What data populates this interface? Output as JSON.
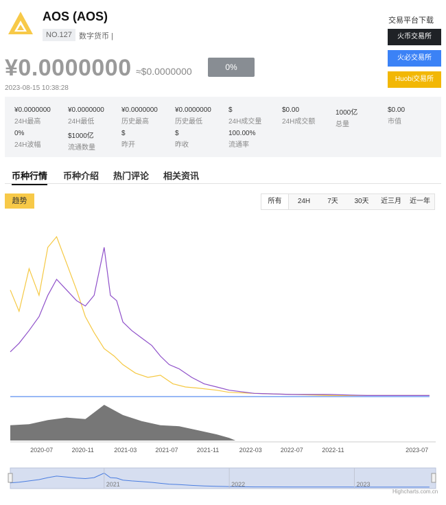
{
  "coin": {
    "name": "AOS (AOS)",
    "rank": "NO.127",
    "type": "数字货币 |",
    "price_cny": "¥0.0000000",
    "price_usd": "≈$0.0000000",
    "change": "0%",
    "timestamp": "2023-08-15 10:38:28",
    "accent_color": "#f7c948",
    "logo_icon": "aos-logo-icon"
  },
  "exchanges": {
    "title": "交易平台下载",
    "buttons": [
      "火币交易所",
      "火必交易所",
      "Huobi交易所"
    ]
  },
  "stats": [
    {
      "value": "¥0.0000000",
      "label": "24H最高"
    },
    {
      "value": "¥0.0000000",
      "label": "24H最低"
    },
    {
      "value": "¥0.0000000",
      "label": "历史最高"
    },
    {
      "value": "¥0.0000000",
      "label": "历史最低"
    },
    {
      "value": "$",
      "label": "24H成交量"
    },
    {
      "value": "$0.00",
      "label": "24H成交额"
    },
    {
      "value": "1000亿",
      "label": "总量"
    },
    {
      "value": "$0.00",
      "label": "市值"
    },
    {
      "value": "0%",
      "label": "24H波幅"
    },
    {
      "value": "$1000亿",
      "label": "流通数量"
    },
    {
      "value": "$",
      "label": "昨开"
    },
    {
      "value": "$",
      "label": "昨收"
    },
    {
      "value": "100.00%",
      "label": "流通率"
    }
  ],
  "tabs": [
    "币种行情",
    "币种介绍",
    "热门评论",
    "相关资讯"
  ],
  "trend_label": "趋势",
  "ranges": [
    "所有",
    "24H",
    "7天",
    "30天",
    "近三月",
    "近一年"
  ],
  "active_range": "所有",
  "chart_credit": "Highcharts.com.cn",
  "chart_data": {
    "type": "line",
    "x_ticks": [
      "2020-07",
      "2020-11",
      "2021-03",
      "2021-07",
      "2021-11",
      "2022-03",
      "2022-07",
      "2022-11",
      "2023-07"
    ],
    "navigator_ticks": [
      "2021",
      "2022",
      "2023"
    ],
    "series": [
      {
        "color": "#f5c842",
        "x": [
          2020.25,
          2020.32,
          2020.4,
          2020.48,
          2020.55,
          2020.62,
          2020.7,
          2020.78,
          2020.85,
          2020.92,
          2021.0,
          2021.08,
          2021.15,
          2021.25,
          2021.35,
          2021.45,
          2021.55,
          2021.65,
          2021.75,
          2021.9,
          2022.0,
          2022.2,
          2022.5,
          2022.8,
          2023.1,
          2023.4,
          2023.6
        ],
        "values": [
          100,
          80,
          120,
          95,
          140,
          150,
          125,
          100,
          75,
          60,
          45,
          38,
          30,
          22,
          18,
          20,
          12,
          9,
          8,
          6,
          4,
          3,
          2,
          1,
          1,
          1,
          1
        ]
      },
      {
        "color": "#8e4fc9",
        "x": [
          2020.25,
          2020.32,
          2020.4,
          2020.48,
          2020.55,
          2020.62,
          2020.7,
          2020.78,
          2020.85,
          2020.92,
          2021.0,
          2021.05,
          2021.1,
          2021.15,
          2021.22,
          2021.3,
          2021.38,
          2021.45,
          2021.52,
          2021.6,
          2021.7,
          2021.8,
          2021.9,
          2022.0,
          2022.2,
          2022.5,
          2022.8,
          2023.1,
          2023.4,
          2023.6
        ],
        "values": [
          42,
          50,
          62,
          75,
          95,
          110,
          100,
          90,
          85,
          95,
          140,
          95,
          90,
          70,
          62,
          55,
          48,
          38,
          30,
          26,
          18,
          12,
          9,
          6,
          3,
          2,
          2,
          1,
          1,
          1
        ]
      },
      {
        "color": "#5b8def",
        "x": [
          2020.25,
          2020.52,
          2020.53,
          2023.6
        ],
        "values": [
          0,
          0,
          0,
          0
        ]
      }
    ],
    "volume": {
      "color": "#777777",
      "x": [
        2020.25,
        2020.4,
        2020.55,
        2020.7,
        2020.85,
        2021.0,
        2021.15,
        2021.3,
        2021.45,
        2021.6,
        2021.75,
        2021.9,
        2022.0,
        2022.05
      ],
      "values": [
        30,
        32,
        40,
        45,
        42,
        70,
        50,
        38,
        30,
        28,
        20,
        12,
        5,
        0
      ]
    },
    "navigator": {
      "color": "#4a7de0",
      "fill": "#d6def0"
    }
  }
}
